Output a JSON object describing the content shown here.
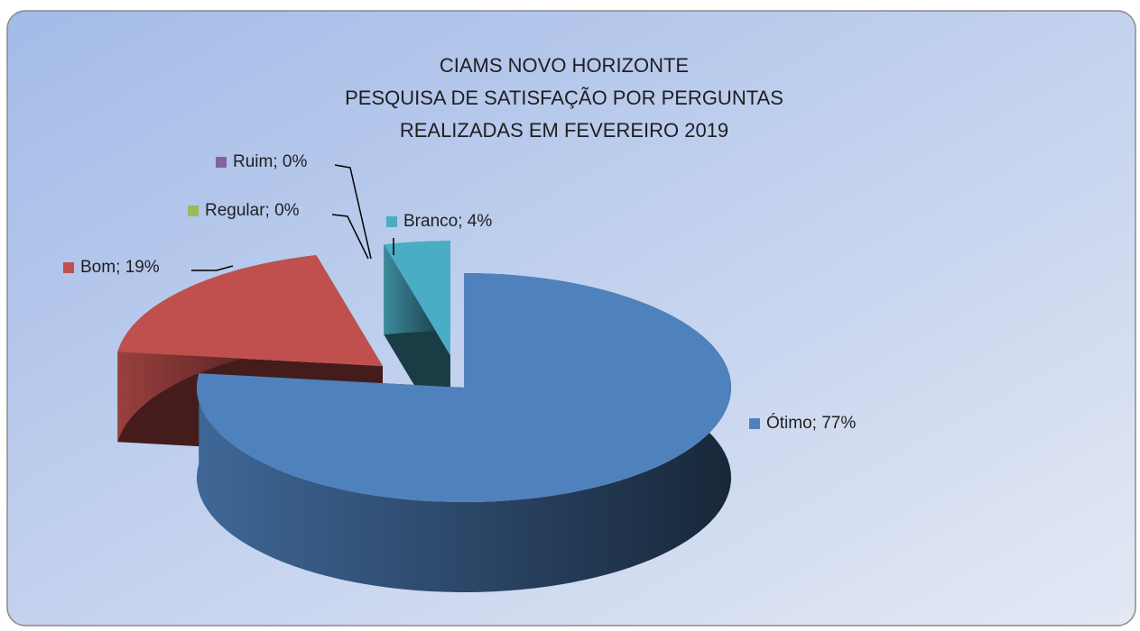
{
  "chart_data": {
    "type": "pie",
    "title": [
      "CIAMS NOVO HORIZONTE",
      "PESQUISA DE SATISFAÇÃO POR PERGUNTAS",
      "REALIZADAS EM  FEVEREIRO 2019"
    ],
    "categories": [
      "Ótimo",
      "Bom",
      "Regular",
      "Ruim",
      "Branco"
    ],
    "values": [
      77,
      19,
      0,
      0,
      4
    ],
    "value_labels": [
      "Ótimo; 77%",
      "Bom; 19%",
      "Regular; 0%",
      "Ruim; 0%",
      "Branco; 4%"
    ],
    "colors": [
      "#4f81bd",
      "#c0504d",
      "#9bbb59",
      "#8064a2",
      "#4bacc6"
    ]
  }
}
